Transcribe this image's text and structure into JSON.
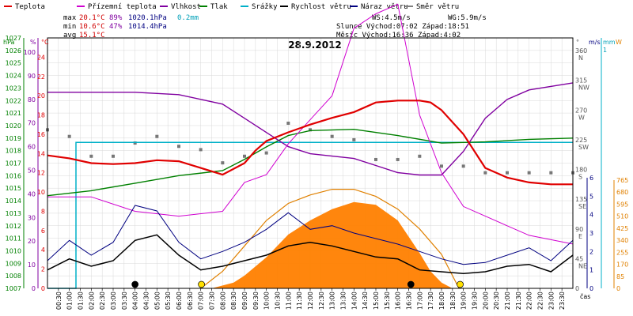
{
  "chart_data": {
    "type": "line",
    "title": "28.9.2012",
    "legend": [
      {
        "label": "Teplota",
        "color": "#e00000"
      },
      {
        "label": "Přízemní teplota",
        "color": "#d000d0"
      },
      {
        "label": "Vlhkost",
        "color": "#8000a0"
      },
      {
        "label": "Tlak",
        "color": "#008000"
      },
      {
        "label": "Srážky",
        "color": "#00b0c8"
      },
      {
        "label": "Rychlost větru",
        "color": "#000000"
      },
      {
        "label": "Náraz větru",
        "color": "#000080"
      },
      {
        "label": "Směr větru",
        "color": "#808080"
      }
    ],
    "stats": {
      "max_label": "max",
      "max_temp": "20.1°C",
      "max_hum": "89%",
      "max_press": "1020.1hPa",
      "max_rain": "0.2mm",
      "min_label": "min",
      "min_temp": "10.6°C",
      "min_hum": "47%",
      "min_press": "1014.4hPa",
      "avg_label": "avg",
      "avg_temp": "15.1°C",
      "ws": "WS:4.5m/s",
      "wg": "WG:5.9m/s",
      "sun": "Slunce Východ:07:02  Západ:18:51",
      "moon": "Měsíc  Východ:16:36  Západ:4:02"
    },
    "axes": {
      "hpa_unit": "hPa",
      "pct_unit": "%",
      "temp_unit": "°C",
      "deg_unit": "°",
      "ms_unit": "m/s",
      "mm_unit": "mm",
      "w_unit": "W",
      "x_unit": "čas",
      "hpa_ticks": [
        "1027",
        "1026",
        "1025",
        "1024",
        "1023",
        "1022",
        "1021",
        "1020",
        "1019",
        "1018",
        "1017",
        "1016",
        "1015",
        "1014",
        "1013",
        "1012",
        "1011",
        "1010",
        "1009",
        "1008",
        "1007"
      ],
      "pct_ticks": [
        "100",
        "90",
        "80",
        "70",
        "60",
        "50",
        "40",
        "30",
        "20",
        "10",
        "0"
      ],
      "temp_ticks": [
        "24",
        "22",
        "20",
        "18",
        "16",
        "14",
        "12",
        "10",
        "8",
        "6",
        "4",
        "2",
        "0"
      ],
      "dir_ticks": [
        "360\nN",
        "315\nNW",
        "270\nW",
        "225\nSW",
        "180\nS",
        "135\nSE",
        "90\nE",
        "45\nNE",
        "0"
      ],
      "ms_ticks": [
        "6",
        "5",
        "4",
        "3",
        "2",
        "1",
        "0"
      ],
      "mm_ticks": [
        "1"
      ],
      "w_ticks": [
        "765",
        "680",
        "595",
        "510",
        "425",
        "340",
        "255",
        "170",
        "85",
        "0"
      ],
      "x_ticks": [
        "00:30",
        "01:00",
        "01:30",
        "02:00",
        "02:30",
        "03:00",
        "03:30",
        "04:00",
        "04:30",
        "05:00",
        "05:30",
        "06:00",
        "06:30",
        "07:00",
        "07:30",
        "08:00",
        "08:30",
        "09:00",
        "09:30",
        "10:00",
        "10:30",
        "11:00",
        "11:30",
        "12:00",
        "12:30",
        "13:00",
        "13:30",
        "14:00",
        "14:30",
        "15:00",
        "15:30",
        "16:00",
        "16:30",
        "17:00",
        "17:30",
        "18:00",
        "18:30",
        "19:00",
        "19:30",
        "20:00",
        "20:30",
        "21:00",
        "21:30",
        "22:00",
        "22:30",
        "23:00",
        "23:30"
      ]
    },
    "temperature_c": [
      [
        0,
        13.8
      ],
      [
        1,
        13.5
      ],
      [
        2,
        13.0
      ],
      [
        3,
        12.9
      ],
      [
        4,
        13.0
      ],
      [
        5,
        13.3
      ],
      [
        6,
        13.2
      ],
      [
        7,
        12.5
      ],
      [
        8,
        11.8
      ],
      [
        9,
        13.0
      ],
      [
        9.5,
        14.3
      ],
      [
        10,
        15.3
      ],
      [
        11,
        16.2
      ],
      [
        12,
        17.0
      ],
      [
        13,
        17.7
      ],
      [
        14,
        18.3
      ],
      [
        15,
        19.3
      ],
      [
        16,
        19.5
      ],
      [
        17,
        19.5
      ],
      [
        17.5,
        19.3
      ],
      [
        18,
        18.5
      ],
      [
        19,
        16.0
      ],
      [
        20,
        12.5
      ],
      [
        21,
        11.5
      ],
      [
        22,
        11.0
      ],
      [
        23,
        10.8
      ],
      [
        24,
        10.8
      ]
    ],
    "ground_temperature_c": [
      [
        0,
        9.5
      ],
      [
        2,
        9.5
      ],
      [
        4,
        8.0
      ],
      [
        6,
        7.5
      ],
      [
        8,
        8.0
      ],
      [
        9,
        11.0
      ],
      [
        10,
        11.8
      ],
      [
        11,
        15.0
      ],
      [
        12,
        17.5
      ],
      [
        13,
        20.0
      ],
      [
        14,
        27.0
      ],
      [
        15,
        28.5
      ],
      [
        16,
        29.5
      ],
      [
        17,
        18.0
      ],
      [
        18,
        12.0
      ],
      [
        19,
        8.5
      ],
      [
        20,
        7.5
      ],
      [
        21,
        6.5
      ],
      [
        22,
        5.5
      ],
      [
        24,
        4.6
      ]
    ],
    "humidity_pct": [
      [
        0,
        83
      ],
      [
        2,
        83
      ],
      [
        4,
        83
      ],
      [
        6,
        82
      ],
      [
        8,
        78
      ],
      [
        9,
        72
      ],
      [
        10,
        66
      ],
      [
        11,
        60
      ],
      [
        12,
        57
      ],
      [
        14,
        55
      ],
      [
        15,
        52
      ],
      [
        16,
        49
      ],
      [
        17,
        48
      ],
      [
        18,
        48
      ],
      [
        19,
        58
      ],
      [
        20,
        72
      ],
      [
        21,
        80
      ],
      [
        22,
        84
      ],
      [
        24,
        87
      ]
    ],
    "pressure_hpa": [
      [
        0,
        1014.4
      ],
      [
        2,
        1014.8
      ],
      [
        4,
        1015.4
      ],
      [
        6,
        1016.0
      ],
      [
        8,
        1016.4
      ],
      [
        9,
        1017.3
      ],
      [
        10,
        1018.3
      ],
      [
        11,
        1019.2
      ],
      [
        12,
        1019.6
      ],
      [
        14,
        1019.7
      ],
      [
        16,
        1019.2
      ],
      [
        18,
        1018.6
      ],
      [
        20,
        1018.7
      ],
      [
        22,
        1018.9
      ],
      [
        24,
        1019.0
      ]
    ],
    "rain_mm": [
      [
        0,
        0
      ],
      [
        1.3,
        0
      ],
      [
        1.3,
        0.2
      ],
      [
        24,
        0.2
      ]
    ],
    "wind_speed_ms": [
      [
        0,
        1.0
      ],
      [
        1,
        1.6
      ],
      [
        2,
        1.2
      ],
      [
        3,
        1.5
      ],
      [
        4,
        2.6
      ],
      [
        5,
        2.9
      ],
      [
        6,
        1.8
      ],
      [
        7,
        1.0
      ],
      [
        8,
        1.2
      ],
      [
        9,
        1.5
      ],
      [
        10,
        1.8
      ],
      [
        11,
        2.3
      ],
      [
        12,
        2.5
      ],
      [
        13,
        2.3
      ],
      [
        14,
        2.0
      ],
      [
        15,
        1.7
      ],
      [
        16,
        1.6
      ],
      [
        17,
        1.0
      ],
      [
        18,
        0.9
      ],
      [
        19,
        0.8
      ],
      [
        20,
        0.9
      ],
      [
        21,
        1.2
      ],
      [
        22,
        1.3
      ],
      [
        23,
        0.9
      ],
      [
        24,
        1.8
      ]
    ],
    "wind_gust_ms": [
      [
        0,
        1.5
      ],
      [
        1,
        2.6
      ],
      [
        2,
        1.8
      ],
      [
        3,
        2.5
      ],
      [
        4,
        4.5
      ],
      [
        5,
        4.2
      ],
      [
        6,
        2.5
      ],
      [
        7,
        1.6
      ],
      [
        8,
        2.0
      ],
      [
        9,
        2.5
      ],
      [
        10,
        3.2
      ],
      [
        11,
        4.1
      ],
      [
        12,
        3.2
      ],
      [
        13,
        3.4
      ],
      [
        14,
        3.0
      ],
      [
        15,
        2.7
      ],
      [
        16,
        2.4
      ],
      [
        17,
        2.0
      ],
      [
        18,
        1.6
      ],
      [
        19,
        1.3
      ],
      [
        20,
        1.4
      ],
      [
        21,
        1.8
      ],
      [
        22,
        2.2
      ],
      [
        23,
        1.5
      ],
      [
        24,
        2.6
      ]
    ],
    "wind_direction_deg": [
      [
        0,
        240
      ],
      [
        1,
        230
      ],
      [
        2,
        200
      ],
      [
        3,
        200
      ],
      [
        4,
        220
      ],
      [
        5,
        230
      ],
      [
        6,
        215
      ],
      [
        7,
        210
      ],
      [
        8,
        190
      ],
      [
        9,
        200
      ],
      [
        10,
        205
      ],
      [
        11,
        250
      ],
      [
        12,
        240
      ],
      [
        13,
        230
      ],
      [
        14,
        225
      ],
      [
        15,
        195
      ],
      [
        16,
        195
      ],
      [
        17,
        200
      ],
      [
        18,
        185
      ],
      [
        19,
        185
      ],
      [
        20,
        175
      ],
      [
        21,
        175
      ],
      [
        22,
        175
      ],
      [
        23,
        175
      ],
      [
        24,
        175
      ]
    ],
    "solar_radiation_w": [
      [
        7.5,
        0
      ],
      [
        8.5,
        40
      ],
      [
        9,
        90
      ],
      [
        10,
        220
      ],
      [
        11,
        380
      ],
      [
        12,
        480
      ],
      [
        13,
        560
      ],
      [
        14,
        610
      ],
      [
        15,
        590
      ],
      [
        16,
        480
      ],
      [
        17,
        250
      ],
      [
        17.5,
        120
      ],
      [
        18,
        40
      ],
      [
        18.5,
        0
      ]
    ],
    "solar_clear_sky_w": [
      [
        7.0,
        0
      ],
      [
        8,
        120
      ],
      [
        9,
        300
      ],
      [
        10,
        480
      ],
      [
        11,
        600
      ],
      [
        12,
        660
      ],
      [
        13,
        700
      ],
      [
        14,
        700
      ],
      [
        15,
        650
      ],
      [
        16,
        560
      ],
      [
        17,
        420
      ],
      [
        18,
        240
      ],
      [
        18.8,
        0
      ]
    ],
    "markers": [
      {
        "time": "04:00",
        "kind": "moon-set",
        "color": "#000000"
      },
      {
        "time": "07:02",
        "kind": "sunrise",
        "color": "#ffe000"
      },
      {
        "time": "16:36",
        "kind": "moon-rise",
        "color": "#000000"
      },
      {
        "time": "18:51",
        "kind": "sunset",
        "color": "#ffe000"
      }
    ]
  }
}
